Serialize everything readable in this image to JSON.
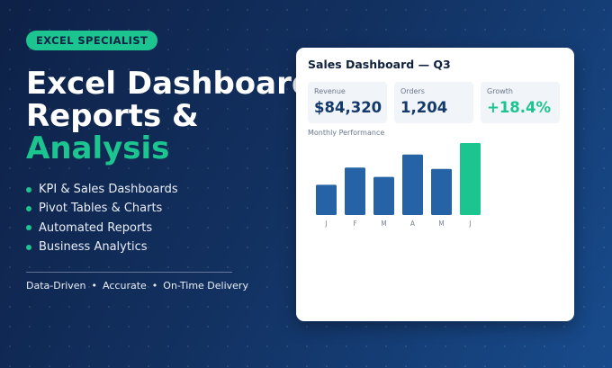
{
  "badge": "EXCEL SPECIALIST",
  "headline": {
    "line1": "Excel Dashboard",
    "line2": "Reports &",
    "line3": "Analysis"
  },
  "bullets": [
    "KPI & Sales Dashboards",
    "Pivot Tables & Charts",
    "Automated Reports",
    "Business Analytics"
  ],
  "tagline": {
    "part1": "Data-Driven",
    "part2": "Accurate",
    "part3": "On-Time Delivery",
    "separator": "•"
  },
  "dashboard": {
    "title": "Sales Dashboard — Q3",
    "kpis": [
      {
        "label": "Revenue",
        "value": "$84,320"
      },
      {
        "label": "Orders",
        "value": "1,204"
      },
      {
        "label": "Growth",
        "value": "+18.4%"
      }
    ],
    "performance_label": "Monthly Performance"
  },
  "colors": {
    "accent": "#1cc58f",
    "bar": "#2563a6",
    "highlight_bar": "#1cc58f",
    "background_dark": "#0e2147"
  },
  "chart_data": {
    "type": "bar",
    "title": "Monthly Performance",
    "categories": [
      "J",
      "F",
      "M",
      "A",
      "M",
      "J"
    ],
    "values": [
      42,
      66,
      53,
      84,
      64,
      100
    ],
    "highlight_index": 5,
    "ylim": [
      0,
      100
    ],
    "grid": false,
    "legend": "none"
  }
}
